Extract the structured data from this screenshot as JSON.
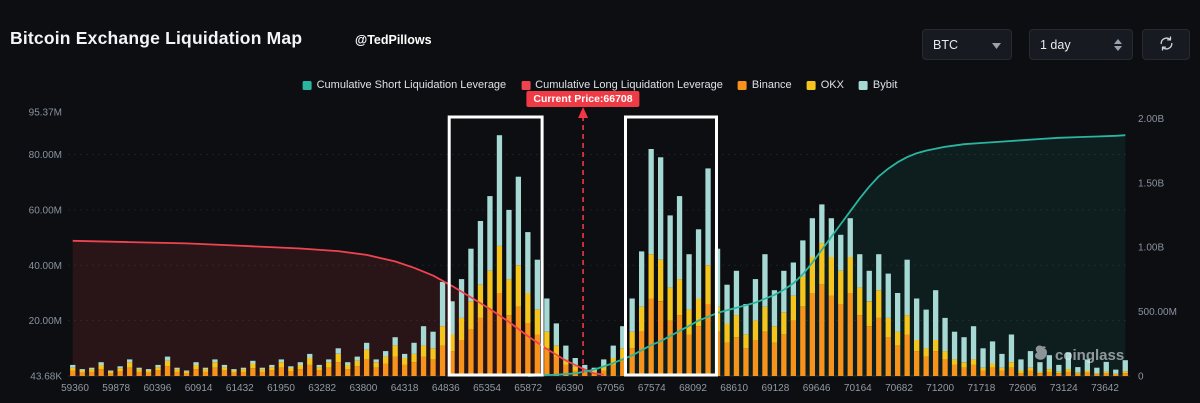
{
  "header": {
    "title": "Bitcoin Exchange Liquidation Map",
    "handle": "@TedPillows",
    "symbol_select": "BTC",
    "interval_select": "1 day"
  },
  "legend": [
    {
      "label": "Cumulative Short Liquidation Leverage",
      "color": "#2ab5a0"
    },
    {
      "label": "Cumulative Long Liquidation Leverage",
      "color": "#ef4450"
    },
    {
      "label": "Binance",
      "color": "#f7931a"
    },
    {
      "label": "OKX",
      "color": "#f6c51d"
    },
    {
      "label": "Bybit",
      "color": "#a6d9d4"
    }
  ],
  "current_price": {
    "label": "Current Price:66708",
    "value": 66708
  },
  "watermark": "coinglass",
  "chart_data": {
    "type": "bar",
    "title": "Bitcoin Exchange Liquidation Map",
    "bars_unit": "M (left axis)",
    "lines_unit": "B (right axis)",
    "stack_series": [
      {
        "name": "Binance",
        "color": "#f7931a"
      },
      {
        "name": "OKX",
        "color": "#f6c51d"
      },
      {
        "name": "Bybit",
        "color": "#a6d9d4"
      }
    ],
    "bars": [
      [
        2,
        1,
        1
      ],
      [
        1.2,
        0.8,
        0.5
      ],
      [
        1.5,
        1,
        0.5
      ],
      [
        2.5,
        1.5,
        1
      ],
      [
        1,
        0.6,
        0.4
      ],
      [
        1.8,
        1,
        0.7
      ],
      [
        3,
        2,
        1
      ],
      [
        1.5,
        1,
        0.5
      ],
      [
        1.2,
        0.8,
        0.5
      ],
      [
        2,
        1.2,
        0.8
      ],
      [
        3.5,
        2,
        1.5
      ],
      [
        1.5,
        1,
        0.5
      ],
      [
        1,
        0.6,
        0.4
      ],
      [
        2.5,
        1.5,
        1
      ],
      [
        1.5,
        1,
        0.5
      ],
      [
        3,
        2,
        1
      ],
      [
        2,
        1.2,
        0.8
      ],
      [
        1.2,
        0.8,
        0.5
      ],
      [
        1.5,
        1,
        0.5
      ],
      [
        2.8,
        1.7,
        1
      ],
      [
        1.5,
        1,
        0.5
      ],
      [
        2,
        1.2,
        0.8
      ],
      [
        3,
        2,
        1
      ],
      [
        1.8,
        1.1,
        0.6
      ],
      [
        2.5,
        1.5,
        1
      ],
      [
        4,
        2.5,
        1.5
      ],
      [
        2,
        1.2,
        0.8
      ],
      [
        3,
        2,
        1
      ],
      [
        5,
        3,
        2
      ],
      [
        2.5,
        1.5,
        1
      ],
      [
        3.5,
        2,
        1.5
      ],
      [
        6,
        3.5,
        2.5
      ],
      [
        3,
        2,
        1
      ],
      [
        4.5,
        2.5,
        2
      ],
      [
        7,
        4,
        3
      ],
      [
        4,
        2.5,
        1.5
      ],
      [
        5,
        3,
        4
      ],
      [
        7,
        4,
        7
      ],
      [
        6,
        4,
        6
      ],
      [
        11,
        7,
        16
      ],
      [
        9,
        6,
        12
      ],
      [
        13,
        8,
        14
      ],
      [
        17,
        10,
        19
      ],
      [
        21,
        12,
        23
      ],
      [
        24,
        14,
        27
      ],
      [
        30,
        17,
        40
      ],
      [
        22,
        13,
        25
      ],
      [
        25,
        15,
        32
      ],
      [
        19,
        11,
        22
      ],
      [
        15,
        9,
        18
      ],
      [
        10,
        6,
        12
      ],
      [
        7,
        4,
        8
      ],
      [
        4,
        2,
        5
      ],
      [
        2,
        1.5,
        3
      ],
      [
        1.5,
        1,
        1.5
      ],
      [
        1,
        0.8,
        1.2
      ],
      [
        2,
        1.5,
        2.5
      ],
      [
        4,
        2.5,
        4.5
      ],
      [
        6,
        4,
        8
      ],
      [
        10,
        6,
        12
      ],
      [
        16,
        9,
        20
      ],
      [
        28,
        16,
        38
      ],
      [
        27,
        15,
        37
      ],
      [
        20,
        12,
        26
      ],
      [
        22,
        13,
        30
      ],
      [
        15,
        9,
        20
      ],
      [
        18,
        10,
        25
      ],
      [
        26,
        14,
        35
      ],
      [
        16,
        9,
        21
      ],
      [
        12,
        7,
        14
      ],
      [
        14,
        8,
        16
      ],
      [
        10,
        5,
        11
      ],
      [
        13,
        7,
        15
      ],
      [
        16,
        9,
        19
      ],
      [
        12,
        6,
        13
      ],
      [
        15,
        8,
        15
      ],
      [
        20,
        9,
        12
      ],
      [
        25,
        11,
        13
      ],
      [
        30,
        13,
        14
      ],
      [
        33,
        15,
        14
      ],
      [
        29,
        14,
        14
      ],
      [
        26,
        12,
        13
      ],
      [
        30,
        13,
        14
      ],
      [
        22,
        10,
        12
      ],
      [
        18,
        9,
        11
      ],
      [
        21,
        10,
        13
      ],
      [
        14,
        7,
        16
      ],
      [
        11,
        5,
        14
      ],
      [
        15,
        7,
        20
      ],
      [
        9,
        4,
        15
      ],
      [
        7,
        3,
        14
      ],
      [
        9,
        4,
        18
      ],
      [
        6,
        3,
        12
      ],
      [
        4,
        2,
        10
      ],
      [
        3,
        2,
        9
      ],
      [
        4,
        2,
        12
      ],
      [
        2,
        1,
        7
      ],
      [
        3,
        1.5,
        8
      ],
      [
        2,
        1,
        5
      ],
      [
        3,
        2,
        10
      ],
      [
        1,
        1,
        4
      ],
      [
        2,
        1,
        6
      ],
      [
        1,
        0.5,
        3.5
      ],
      [
        1.5,
        1,
        5
      ],
      [
        1,
        0.5,
        2.5
      ],
      [
        1.5,
        1,
        6
      ],
      [
        0.8,
        0.4,
        2
      ],
      [
        1.2,
        0.8,
        4
      ],
      [
        0.6,
        0.4,
        2
      ],
      [
        1,
        0.6,
        3.5
      ],
      [
        0.5,
        0.3,
        1.5
      ],
      [
        1,
        0.7,
        4
      ]
    ],
    "lines": [
      {
        "name": "Cumulative Long Liquidation Leverage",
        "color": "#ef4450",
        "axis": "right",
        "points": [
          [
            0,
            1.05
          ],
          [
            6,
            1.04
          ],
          [
            12,
            1.03
          ],
          [
            18,
            1.01
          ],
          [
            24,
            0.99
          ],
          [
            28,
            0.97
          ],
          [
            31,
            0.94
          ],
          [
            34,
            0.89
          ],
          [
            36,
            0.84
          ],
          [
            38,
            0.78
          ],
          [
            40,
            0.7
          ],
          [
            42,
            0.61
          ],
          [
            44,
            0.52
          ],
          [
            46,
            0.42
          ],
          [
            48,
            0.31
          ],
          [
            50,
            0.21
          ],
          [
            52,
            0.12
          ],
          [
            54,
            0.05
          ],
          [
            55,
            0.02
          ],
          [
            56,
            0.01
          ]
        ]
      },
      {
        "name": "Cumulative Short Liquidation Leverage",
        "color": "#2ab5a0",
        "axis": "right",
        "points": [
          [
            48,
            0
          ],
          [
            51,
            0.01
          ],
          [
            53,
            0.02
          ],
          [
            55,
            0.05
          ],
          [
            57,
            0.1
          ],
          [
            59,
            0.16
          ],
          [
            60,
            0.2
          ],
          [
            61,
            0.24
          ],
          [
            62,
            0.27
          ],
          [
            63,
            0.31
          ],
          [
            64,
            0.35
          ],
          [
            65,
            0.39
          ],
          [
            66,
            0.43
          ],
          [
            67,
            0.46
          ],
          [
            68,
            0.49
          ],
          [
            69,
            0.51
          ],
          [
            70,
            0.53
          ],
          [
            72,
            0.57
          ],
          [
            74,
            0.63
          ],
          [
            75,
            0.67
          ],
          [
            76,
            0.72
          ],
          [
            77,
            0.79
          ],
          [
            78,
            0.88
          ],
          [
            79,
            0.98
          ],
          [
            80,
            1.08
          ],
          [
            81,
            1.18
          ],
          [
            82,
            1.28
          ],
          [
            83,
            1.38
          ],
          [
            84,
            1.47
          ],
          [
            85,
            1.55
          ],
          [
            86,
            1.61
          ],
          [
            87,
            1.66
          ],
          [
            88,
            1.7
          ],
          [
            89,
            1.73
          ],
          [
            90,
            1.75
          ],
          [
            92,
            1.78
          ],
          [
            94,
            1.8
          ],
          [
            96,
            1.81
          ],
          [
            98,
            1.82
          ],
          [
            100,
            1.83
          ],
          [
            102,
            1.84
          ],
          [
            104,
            1.85
          ],
          [
            106,
            1.855
          ],
          [
            108,
            1.86
          ],
          [
            110,
            1.865
          ],
          [
            111,
            1.87
          ]
        ]
      }
    ],
    "left_axis": {
      "max": 95.37,
      "ticks": [
        {
          "label": "95.37M",
          "v": 95.37
        },
        {
          "label": "80.00M",
          "v": 80
        },
        {
          "label": "60.00M",
          "v": 60
        },
        {
          "label": "40.00M",
          "v": 40
        },
        {
          "label": "20.00M",
          "v": 20
        },
        {
          "label": "43.68K",
          "v": 0
        }
      ]
    },
    "right_axis": {
      "max": 2.05,
      "ticks": [
        {
          "label": "2.00B",
          "v": 2.0
        },
        {
          "label": "1.50B",
          "v": 1.5
        },
        {
          "label": "1.00B",
          "v": 1.0
        },
        {
          "label": "500.00M",
          "v": 0.5
        },
        {
          "label": "0",
          "v": 0
        }
      ]
    },
    "x_labels": [
      "59360",
      "59878",
      "60396",
      "60914",
      "61432",
      "61950",
      "63282",
      "63800",
      "64318",
      "64836",
      "65354",
      "65872",
      "66390",
      "67056",
      "67574",
      "68092",
      "68610",
      "69128",
      "69646",
      "70164",
      "70682",
      "71200",
      "71718",
      "72606",
      "73124",
      "73642"
    ],
    "grid_values": [
      20,
      40,
      60,
      80
    ],
    "current_price_frac": 0.485,
    "highlight_boxes": [
      {
        "i0": 40.2,
        "i1": 50.0
      },
      {
        "i0": 58.8,
        "i1": 68.4
      }
    ],
    "legend_position": "top-center",
    "grid": "horizontal-dotted"
  }
}
